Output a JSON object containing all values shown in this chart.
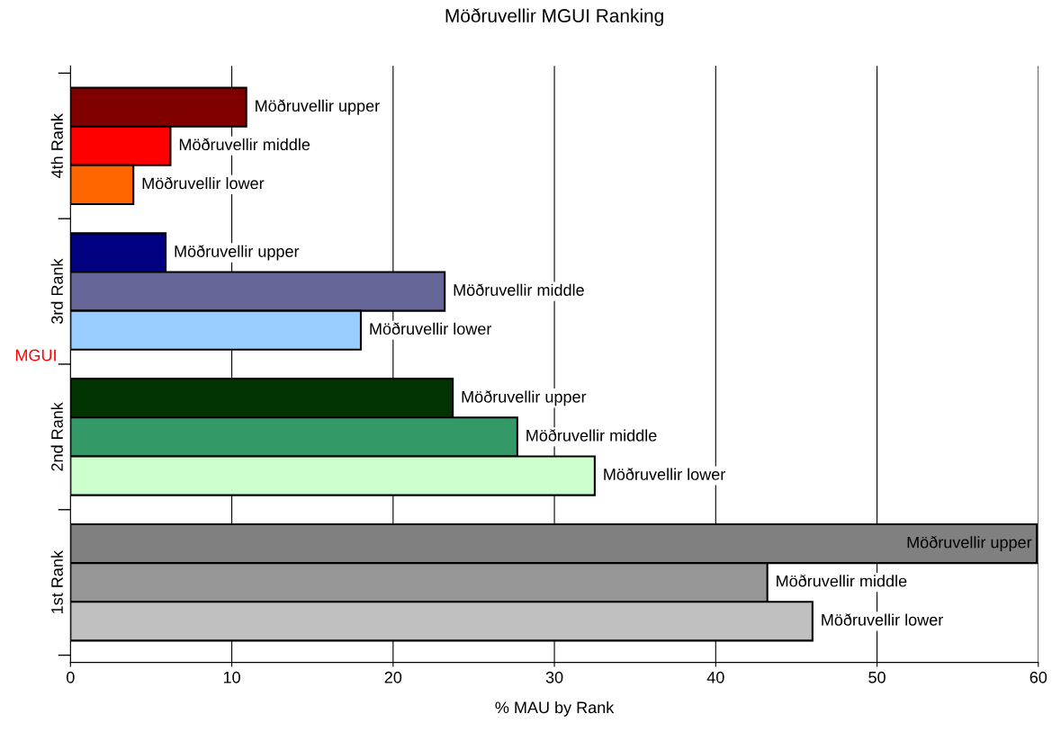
{
  "chart_data": {
    "type": "bar",
    "orientation": "horizontal",
    "title": "Möðruvellir MGUI Ranking",
    "xlabel": "% MAU by Rank",
    "ylabel": "MGUI",
    "categories": [
      "4th Rank",
      "3rd Rank",
      "2nd Rank",
      "1st Rank"
    ],
    "series": [
      {
        "name": "Möðruvellir upper",
        "colors": [
          "#800000",
          "#000080",
          "#003300",
          "#808080"
        ],
        "values": [
          10.9,
          5.9,
          23.7,
          59.9
        ]
      },
      {
        "name": "Möðruvellir middle",
        "colors": [
          "#ff0000",
          "#666699",
          "#339966",
          "#969696"
        ],
        "values": [
          6.2,
          23.2,
          27.7,
          43.2
        ]
      },
      {
        "name": "Möðruvellir lower",
        "colors": [
          "#ff6600",
          "#99ccff",
          "#ccffcc",
          "#c0c0c0"
        ],
        "values": [
          3.9,
          18.0,
          32.5,
          46.0
        ]
      }
    ],
    "xlim": [
      0,
      60
    ],
    "xticks": [
      0,
      10,
      20,
      30,
      40,
      50,
      60
    ],
    "grid": "x",
    "legend": false
  }
}
